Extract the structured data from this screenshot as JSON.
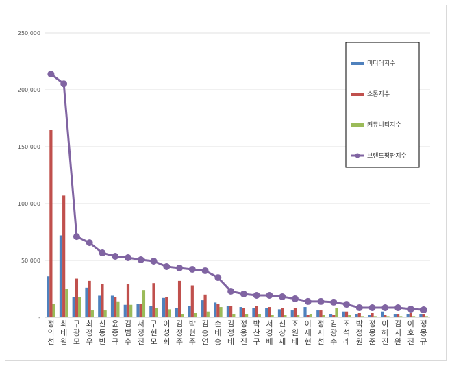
{
  "chart_data": {
    "type": "bar",
    "title": "",
    "xlabel": "",
    "ylabel": "",
    "ylim": [
      0,
      250000
    ],
    "yticks": [
      "-",
      "50,000",
      "100,000",
      "150,000",
      "200,000",
      "250,000"
    ],
    "grid": true,
    "legend_position": "right",
    "categories": [
      "정의선",
      "최태원",
      "구광모",
      "최정우",
      "신동빈",
      "윤종규",
      "김범수",
      "서정진",
      "구현모",
      "이성희",
      "김정주",
      "박현주",
      "김승연",
      "손태승",
      "김정태",
      "정용진",
      "박찬구",
      "서경배",
      "신창재",
      "조원태",
      "이재현",
      "정지선",
      "김광수",
      "조석래",
      "박정원",
      "정몽준",
      "이해진",
      "김지완",
      "이호진",
      "정몽규"
    ],
    "series": [
      {
        "name": "미디어지수",
        "type": "bar",
        "color": "#4f81bd",
        "values": [
          36000,
          72000,
          18000,
          26000,
          19000,
          19000,
          11000,
          12000,
          10000,
          17000,
          8000,
          10000,
          15000,
          13000,
          10000,
          9000,
          8000,
          8000,
          7000,
          6000,
          9000,
          6000,
          3000,
          5000,
          3000,
          2000,
          5000,
          3000,
          3000,
          3000
        ]
      },
      {
        "name": "소통지수",
        "type": "bar",
        "color": "#c0504d",
        "values": [
          165000,
          107000,
          34000,
          32000,
          29000,
          18000,
          29000,
          12000,
          30000,
          18000,
          32000,
          28000,
          20000,
          12000,
          10000,
          8000,
          10000,
          9000,
          8000,
          8000,
          2000,
          6000,
          2000,
          5000,
          4000,
          4000,
          2000,
          3000,
          4000,
          3000
        ]
      },
      {
        "name": "커뮤니티지수",
        "type": "bar",
        "color": "#9bbb59",
        "values": [
          12000,
          25000,
          18000,
          6000,
          6000,
          14000,
          11000,
          24000,
          8000,
          7000,
          3000,
          4000,
          5000,
          9000,
          3000,
          3000,
          3000,
          2000,
          2000,
          2000,
          3000,
          2000,
          8000,
          2000,
          1000,
          1000,
          1000,
          1000,
          1000,
          1000
        ]
      },
      {
        "name": "브랜드평판지수",
        "type": "line",
        "color": "#8064a2",
        "values": [
          213800,
          205300,
          71000,
          65600,
          56600,
          53600,
          52400,
          50600,
          49400,
          44600,
          43400,
          42200,
          41000,
          34900,
          22900,
          20500,
          19300,
          19300,
          18100,
          16300,
          13900,
          13900,
          13300,
          11400,
          8400,
          8400,
          8400,
          8400,
          7200,
          6600
        ]
      }
    ]
  }
}
